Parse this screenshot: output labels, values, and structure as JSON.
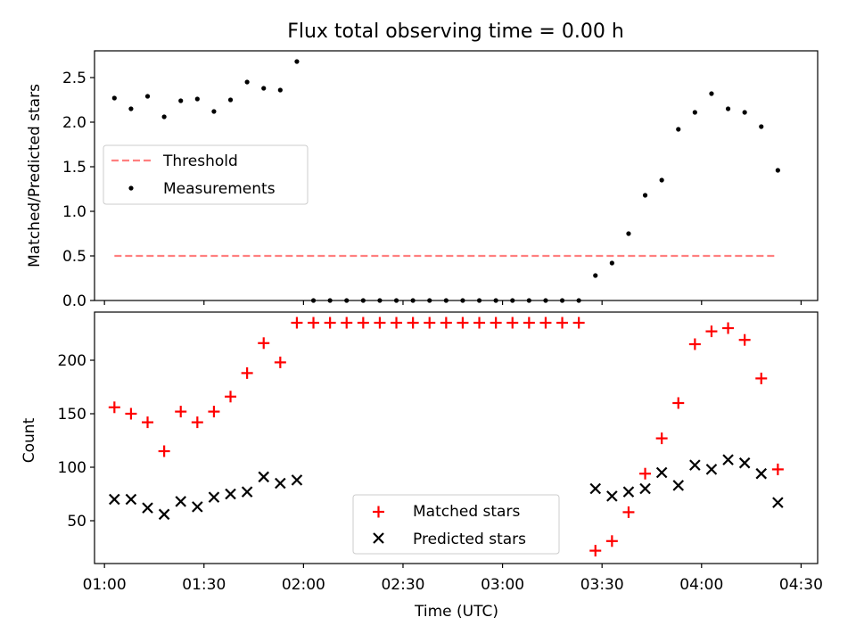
{
  "colors": {
    "threshold": "#ff7f7f",
    "measurements": "#000000",
    "matched": "#ff0000",
    "predicted": "#000000",
    "axes": "#000000",
    "background": "#ffffff"
  },
  "chart_data": [
    {
      "type": "scatter",
      "title": "Flux total observing time = 0.00 h",
      "xlabel": "",
      "ylabel": "Matched/Predicted stars",
      "x_axis": "time",
      "xlim": [
        "00:57",
        "04:35"
      ],
      "ylim": [
        0,
        2.8
      ],
      "yticks": [
        0.0,
        0.5,
        1.0,
        1.5,
        2.0,
        2.5
      ],
      "ytick_labels": [
        "0.0",
        "0.5",
        "1.0",
        "1.5",
        "2.0",
        "2.5"
      ],
      "grid": false,
      "legend": {
        "placement": "center-left",
        "entries": [
          "Threshold",
          "Measurements"
        ]
      },
      "x": [
        "01:03",
        "01:08",
        "01:13",
        "01:18",
        "01:23",
        "01:28",
        "01:33",
        "01:38",
        "01:43",
        "01:48",
        "01:53",
        "01:58",
        "02:03",
        "02:08",
        "02:13",
        "02:18",
        "02:23",
        "02:28",
        "02:33",
        "02:38",
        "02:43",
        "02:48",
        "02:53",
        "02:58",
        "03:03",
        "03:08",
        "03:13",
        "03:18",
        "03:23",
        "03:28",
        "03:33",
        "03:38",
        "03:43",
        "03:48",
        "03:53",
        "03:58",
        "04:03",
        "04:08",
        "04:13",
        "04:18",
        "04:23"
      ],
      "series": [
        {
          "name": "Threshold",
          "style": "dashed-line",
          "x": [
            "01:03",
            "04:23"
          ],
          "values": [
            0.5,
            0.5
          ]
        },
        {
          "name": "Measurements",
          "style": "dot",
          "values": [
            2.27,
            2.15,
            2.29,
            2.06,
            2.24,
            2.26,
            2.12,
            2.25,
            2.45,
            2.38,
            2.36,
            2.68,
            0,
            0,
            0,
            0,
            0,
            0,
            0,
            0,
            0,
            0,
            0,
            0,
            0,
            0,
            0,
            0,
            0,
            0.28,
            0.42,
            0.75,
            1.18,
            1.35,
            1.92,
            2.11,
            2.32,
            2.15,
            2.11,
            1.95,
            1.46
          ]
        }
      ]
    },
    {
      "type": "scatter",
      "title": "",
      "xlabel": "Time (UTC)",
      "ylabel": "Count",
      "x_axis": "time",
      "xlim": [
        "00:57",
        "04:35"
      ],
      "ylim": [
        10,
        245
      ],
      "yticks": [
        50,
        100,
        150,
        200
      ],
      "ytick_labels": [
        "50",
        "100",
        "150",
        "200"
      ],
      "xticks": [
        "01:00",
        "01:30",
        "02:00",
        "02:30",
        "03:00",
        "03:30",
        "04:00",
        "04:30"
      ],
      "xtick_labels": [
        "01:00",
        "01:30",
        "02:00",
        "02:30",
        "03:00",
        "03:30",
        "04:00",
        "04:30"
      ],
      "grid": false,
      "legend": {
        "placement": "lower-center",
        "entries": [
          "Matched stars",
          "Predicted stars"
        ]
      },
      "x": [
        "01:03",
        "01:08",
        "01:13",
        "01:18",
        "01:23",
        "01:28",
        "01:33",
        "01:38",
        "01:43",
        "01:48",
        "01:53",
        "01:58",
        "02:03",
        "02:08",
        "02:13",
        "02:18",
        "02:23",
        "02:28",
        "02:33",
        "02:38",
        "02:43",
        "02:48",
        "02:53",
        "02:58",
        "03:03",
        "03:08",
        "03:13",
        "03:18",
        "03:23",
        "03:28",
        "03:33",
        "03:38",
        "03:43",
        "03:48",
        "03:53",
        "03:58",
        "04:03",
        "04:08",
        "04:13",
        "04:18",
        "04:23"
      ],
      "series": [
        {
          "name": "Matched stars",
          "style": "plus",
          "values": [
            156,
            150,
            142,
            115,
            152,
            142,
            152,
            166,
            188,
            216,
            198,
            235,
            235,
            235,
            235,
            235,
            235,
            235,
            235,
            235,
            235,
            235,
            235,
            235,
            235,
            235,
            235,
            235,
            235,
            22,
            31,
            58,
            94,
            127,
            160,
            215,
            227,
            230,
            219,
            183,
            98
          ]
        },
        {
          "name": "Predicted stars",
          "style": "x",
          "values": [
            70,
            70,
            62,
            56,
            68,
            63,
            72,
            75,
            77,
            91,
            85,
            88,
            null,
            null,
            null,
            null,
            null,
            null,
            null,
            null,
            null,
            null,
            null,
            null,
            null,
            null,
            null,
            null,
            null,
            80,
            73,
            77,
            80,
            95,
            83,
            102,
            98,
            107,
            104,
            94,
            67
          ]
        }
      ]
    }
  ]
}
